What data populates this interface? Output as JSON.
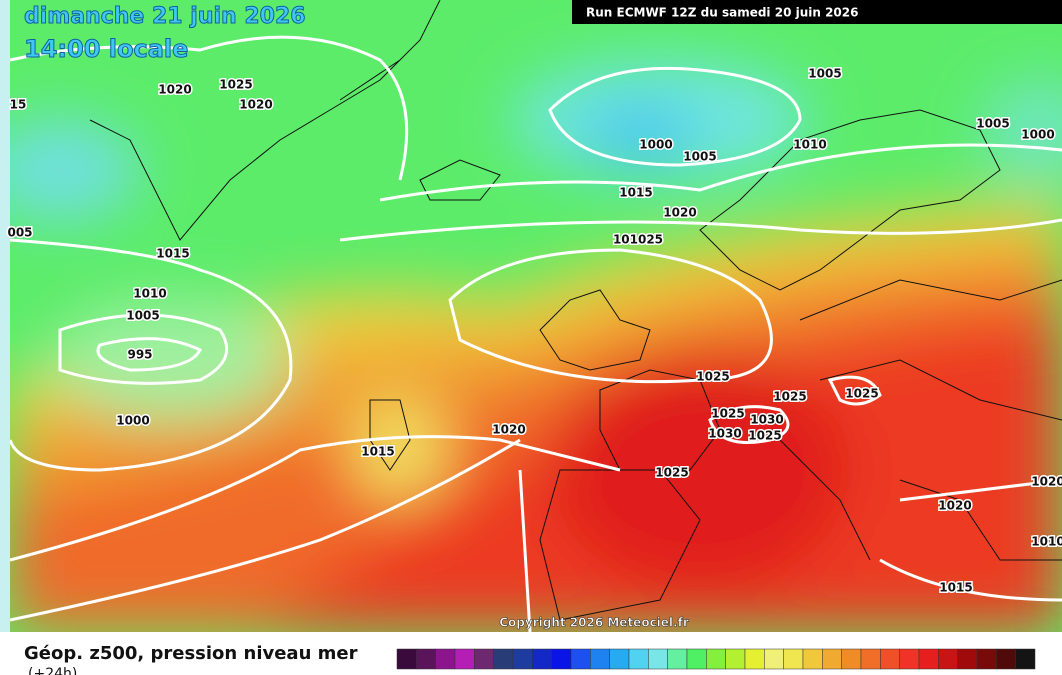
{
  "header": {
    "date": "dimanche 21 juin 2026",
    "time": "14:00 locale",
    "run": "Run ECMWF 12Z du samedi 20 juin 2026"
  },
  "isobar_labels": [
    "15",
    "1020",
    "1025",
    "1020",
    "1005",
    "1000",
    "1005",
    "1010",
    "1005",
    "1000",
    "005",
    "1015",
    "1020",
    "101025",
    "1015",
    "1010",
    "1005",
    "995",
    "1000",
    "1015",
    "1020",
    "1025",
    "1025",
    "1030",
    "1030",
    "1025",
    "1025",
    "1025",
    "1025",
    "1020",
    "1015",
    "1020",
    "1010"
  ],
  "copyright": "Copyright 2026 Meteociel.fr",
  "footer": {
    "title": "Géop. z500, pression niveau mer",
    "subtitle": "(+24h)"
  },
  "legend_colors": [
    "#3a0a3c",
    "#5a145a",
    "#8c148c",
    "#b41eb4",
    "#6e2870",
    "#283c78",
    "#1e3ca0",
    "#1428c8",
    "#0a14e6",
    "#1e50f0",
    "#1e82f0",
    "#28aaf0",
    "#50d2f0",
    "#78e6e6",
    "#64f0a0",
    "#50f064",
    "#82f03c",
    "#b4f032",
    "#e6f032",
    "#f0f078",
    "#f0e650",
    "#f0c83c",
    "#f0aa32",
    "#f08c28",
    "#f06e28",
    "#f05028",
    "#f03228",
    "#e61e1e",
    "#c81414",
    "#a00a0a",
    "#780a0a",
    "#500a0a",
    "#141414"
  ]
}
